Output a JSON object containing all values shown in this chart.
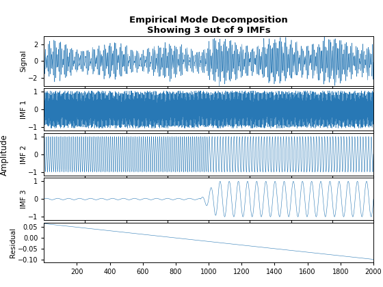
{
  "title": "Empirical Mode Decomposition\nShowing 3 out of 9 IMFs",
  "ylabels": [
    "Signal",
    "IMF 1",
    "IMF 2",
    "IMF 3",
    "Residual"
  ],
  "line_color": "#2878b5",
  "n_points": 2000,
  "xlim": [
    1,
    2000
  ],
  "xticks": [
    200,
    400,
    600,
    800,
    1000,
    1200,
    1400,
    1600,
    1800,
    2000
  ],
  "signal_ylim": [
    -3,
    3
  ],
  "imf1_ylim": [
    -1.2,
    1.2
  ],
  "imf2_ylim": [
    -1.2,
    1.2
  ],
  "imf3_ylim": [
    -1.2,
    1.2
  ],
  "residual_ylim": [
    -0.115,
    0.07
  ],
  "signal_yticks": [
    -2,
    0,
    2
  ],
  "imf1_yticks": [
    -1,
    0,
    1
  ],
  "imf2_yticks": [
    -1,
    0,
    1
  ],
  "imf3_yticks": [
    -1,
    0,
    1
  ],
  "residual_yticks": [
    -0.1,
    -0.05,
    0,
    0.05
  ],
  "background_color": "#ffffff",
  "fig_width": 5.6,
  "fig_height": 4.2,
  "dpi": 100
}
